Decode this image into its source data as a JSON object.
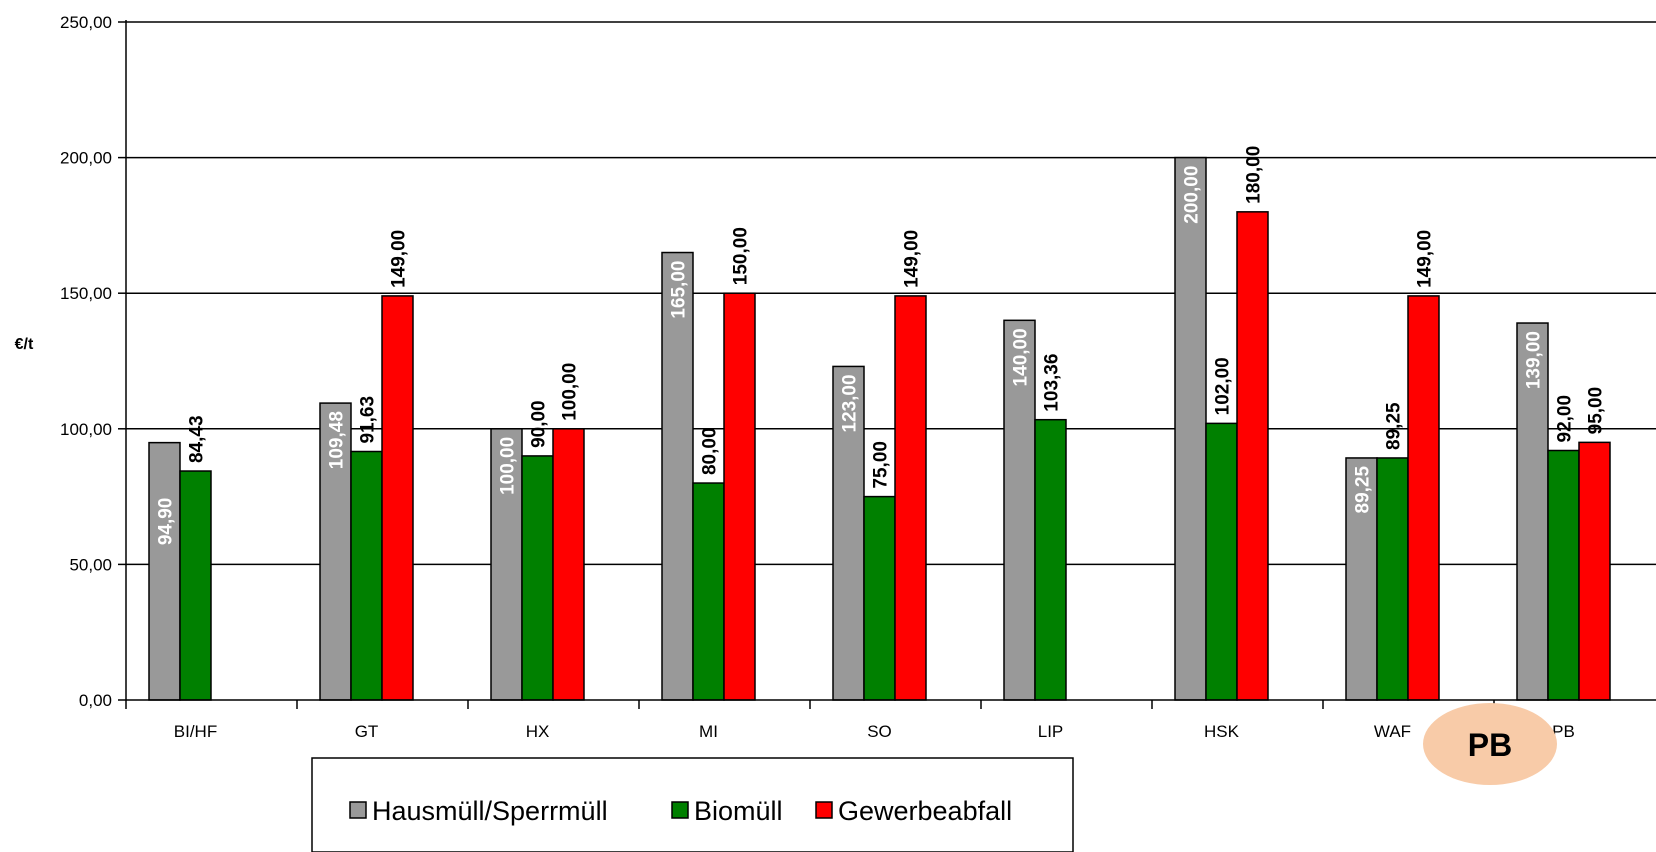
{
  "chart_data": {
    "type": "bar",
    "ylabel": "€/t",
    "xlabel": "",
    "ylim": [
      0,
      250
    ],
    "y_ticks": [
      "0,00",
      "50,00",
      "100,00",
      "150,00",
      "200,00",
      "250,00"
    ],
    "y_tick_values": [
      0,
      50,
      100,
      150,
      200,
      250
    ],
    "categories": [
      "BI/HF",
      "GT",
      "HX",
      "MI",
      "SO",
      "LIP",
      "HSK",
      "WAF",
      "PB"
    ],
    "category_labels": [
      "BI/HF",
      "GT",
      "HX",
      "MI",
      "SO",
      "LIP",
      "HSK",
      "WAF",
      "PB"
    ],
    "grid": true,
    "legend_position": "bottom",
    "series": [
      {
        "name": "Hausmüll/Sperrmüll",
        "color": "#999999",
        "values": [
          94.9,
          109.48,
          100.0,
          165.0,
          123.0,
          140.0,
          200.0,
          89.25,
          139.0
        ],
        "labels": [
          "94,90",
          "109,48",
          "100,00",
          "165,00",
          "123,00",
          "140,00",
          "200,00",
          "89,25",
          "139,00"
        ]
      },
      {
        "name": "Biomüll",
        "color": "#008000",
        "values": [
          84.43,
          91.63,
          90.0,
          80.0,
          75.0,
          103.36,
          102.0,
          89.25,
          92.0
        ],
        "labels": [
          "84,43",
          "91,63",
          "90,00",
          "80,00",
          "75,00",
          "103,36",
          "102,00",
          "89,25",
          "92,00"
        ]
      },
      {
        "name": "Gewerbeabfall",
        "color": "#ff0000",
        "values": [
          null,
          149.0,
          100.0,
          150.0,
          149.0,
          null,
          180.0,
          149.0,
          95.0
        ],
        "labels": [
          "",
          "149,00",
          "100,00",
          "150,00",
          "149,00",
          "",
          "180,00",
          "149,00",
          "95,00"
        ]
      }
    ],
    "annotation": {
      "text": "PB",
      "color": "#f8cba8"
    }
  }
}
